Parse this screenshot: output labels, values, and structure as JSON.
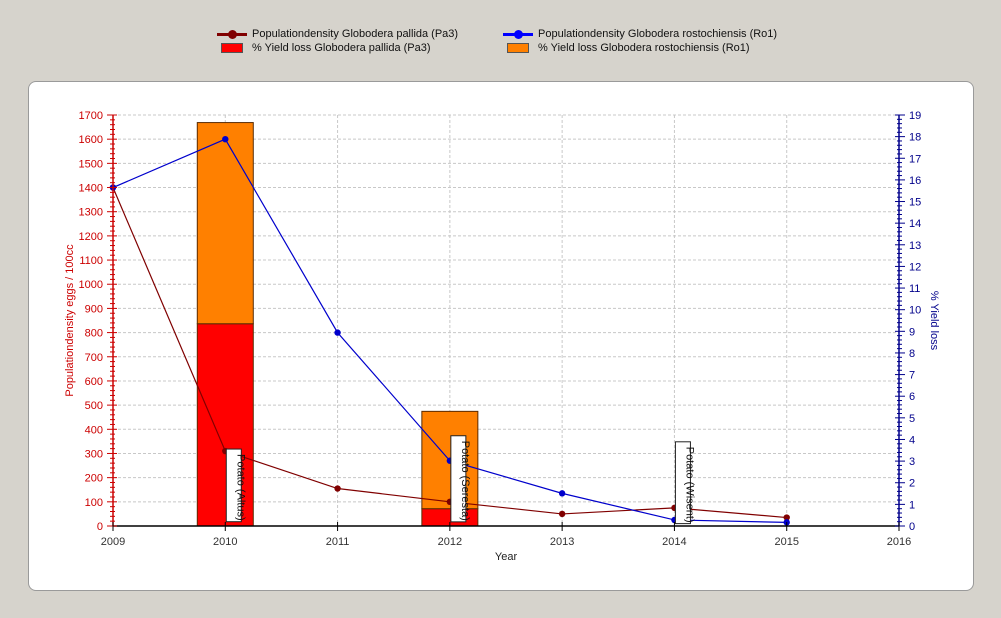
{
  "legend": {
    "items": [
      {
        "label": "Populationdensity Globodera pallida (Pa3)",
        "kind": "line",
        "color": "#800000"
      },
      {
        "label": "Populationdensity Globodera rostochiensis (Ro1)",
        "kind": "line",
        "color": "#0000ff"
      },
      {
        "label": "% Yield loss Globodera pallida (Pa3)",
        "kind": "bar",
        "color": "#ff0000"
      },
      {
        "label": "% Yield loss Globodera rostochiensis (Ro1)",
        "kind": "bar",
        "color": "#ff8000"
      }
    ]
  },
  "chart_data": {
    "type": "bar",
    "xlabel": "Year",
    "ylabel_left": "Populationdensity eggs / 100cc",
    "ylabel_right": "% Yield loss",
    "xlim": [
      2009,
      2016
    ],
    "x_ticks": [
      "2009",
      "2010",
      "2011",
      "2012",
      "2013",
      "2014",
      "2015",
      "2016"
    ],
    "ylim_left": [
      0,
      1700
    ],
    "y_ticks_left": [
      "0",
      "100",
      "200",
      "300",
      "400",
      "500",
      "600",
      "700",
      "800",
      "900",
      "1000",
      "1100",
      "1200",
      "1300",
      "1400",
      "1500",
      "1600",
      "1700"
    ],
    "ylim_right": [
      0,
      19
    ],
    "y_ticks_right": [
      "0",
      "1",
      "2",
      "3",
      "4",
      "5",
      "6",
      "7",
      "8",
      "9",
      "10",
      "11",
      "12",
      "13",
      "14",
      "15",
      "16",
      "17",
      "18",
      "19"
    ],
    "grid": true,
    "legend_position": "top",
    "left_axis_color": "#cc0000",
    "right_axis_color": "#00008b",
    "bar_series": [
      {
        "name": "% Yield loss Globodera pallida (Pa3)",
        "color": "#ff0000",
        "x": [
          2010,
          2012
        ],
        "values": [
          9.35,
          0.8
        ]
      },
      {
        "name": "% Yield loss Globodera rostochiensis (Ro1)",
        "color": "#ff8000",
        "x": [
          2010,
          2012
        ],
        "values": [
          9.3,
          4.5
        ]
      }
    ],
    "line_series": [
      {
        "name": "Populationdensity Globodera pallida (Pa3)",
        "color": "#800000",
        "x": [
          2009,
          2010,
          2011,
          2012,
          2013,
          2014,
          2015
        ],
        "values": [
          1400,
          310,
          155,
          100,
          50,
          75,
          35
        ]
      },
      {
        "name": "Populationdensity Globodera rostochiensis (Ro1)",
        "color": "#0000cc",
        "x": [
          2009,
          2010,
          2011,
          2012,
          2013,
          2014,
          2015
        ],
        "values": [
          1400,
          1600,
          800,
          270,
          135,
          25,
          15
        ]
      }
    ],
    "annotations": [
      {
        "text": "Potato (Altus)",
        "x": 2010,
        "y": 310
      },
      {
        "text": "Potato (Seresta)",
        "x": 2012,
        "y": 365
      },
      {
        "text": "Potato (Wisent)",
        "x": 2014,
        "y": 340
      }
    ]
  }
}
